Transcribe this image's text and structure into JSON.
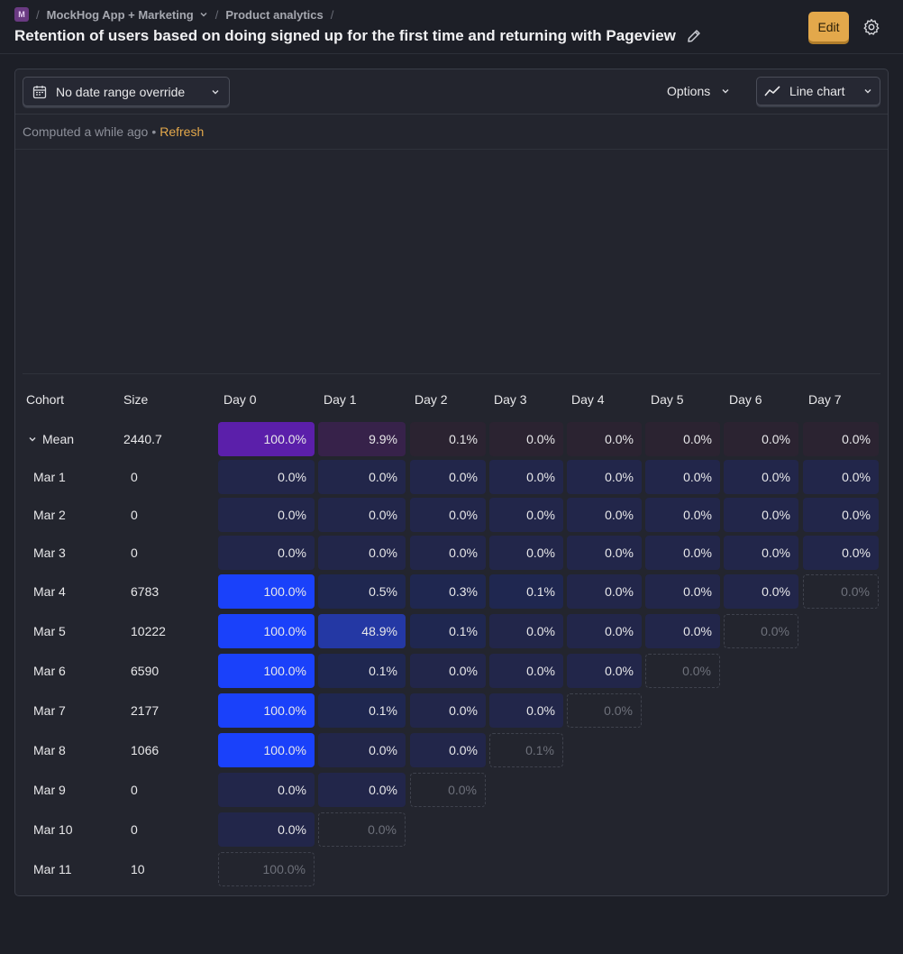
{
  "header": {
    "logo_letter": "M",
    "breadcrumbs": [
      "MockHog App + Marketing",
      "Product analytics"
    ],
    "title": "Retention of users based on doing signed up for the first time and returning with Pageview",
    "edit_label": "Edit"
  },
  "toolbar": {
    "date_range_label": "No date range override",
    "options_label": "Options",
    "chart_type_label": "Line chart"
  },
  "status": {
    "computed": "Computed a while ago",
    "separator": "•",
    "refresh": "Refresh"
  },
  "table": {
    "headers": [
      "Cohort",
      "Size",
      "Day 0",
      "Day 1",
      "Day 2",
      "Day 3",
      "Day 4",
      "Day 5",
      "Day 6",
      "Day 7"
    ],
    "mean": {
      "label": "Mean",
      "size": "2440.7",
      "cells": [
        "100.0%",
        "9.9%",
        "0.1%",
        "0.0%",
        "0.0%",
        "0.0%",
        "0.0%",
        "0.0%"
      ]
    },
    "rows": [
      {
        "label": "Mar 1",
        "size": "0",
        "cells": [
          "0.0%",
          "0.0%",
          "0.0%",
          "0.0%",
          "0.0%",
          "0.0%",
          "0.0%",
          "0.0%"
        ]
      },
      {
        "label": "Mar 2",
        "size": "0",
        "cells": [
          "0.0%",
          "0.0%",
          "0.0%",
          "0.0%",
          "0.0%",
          "0.0%",
          "0.0%",
          "0.0%"
        ]
      },
      {
        "label": "Mar 3",
        "size": "0",
        "cells": [
          "0.0%",
          "0.0%",
          "0.0%",
          "0.0%",
          "0.0%",
          "0.0%",
          "0.0%",
          "0.0%"
        ]
      },
      {
        "label": "Mar 4",
        "size": "6783",
        "cells": [
          "100.0%",
          "0.5%",
          "0.3%",
          "0.1%",
          "0.0%",
          "0.0%",
          "0.0%",
          "0.0%"
        ]
      },
      {
        "label": "Mar 5",
        "size": "10222",
        "cells": [
          "100.0%",
          "48.9%",
          "0.1%",
          "0.0%",
          "0.0%",
          "0.0%",
          "0.0%"
        ]
      },
      {
        "label": "Mar 6",
        "size": "6590",
        "cells": [
          "100.0%",
          "0.1%",
          "0.0%",
          "0.0%",
          "0.0%",
          "0.0%"
        ]
      },
      {
        "label": "Mar 7",
        "size": "2177",
        "cells": [
          "100.0%",
          "0.1%",
          "0.0%",
          "0.0%",
          "0.0%"
        ]
      },
      {
        "label": "Mar 8",
        "size": "1066",
        "cells": [
          "100.0%",
          "0.0%",
          "0.0%",
          "0.1%"
        ]
      },
      {
        "label": "Mar 9",
        "size": "0",
        "cells": [
          "0.0%",
          "0.0%",
          "0.0%"
        ]
      },
      {
        "label": "Mar 10",
        "size": "0",
        "cells": [
          "0.0%",
          "0.0%"
        ]
      },
      {
        "label": "Mar 11",
        "size": "10",
        "cells": [
          "100.0%"
        ]
      }
    ]
  },
  "colors": {
    "accent": "#e3a84b",
    "full_retention": "#1a41fa",
    "mean_full": "#5b1faa"
  }
}
